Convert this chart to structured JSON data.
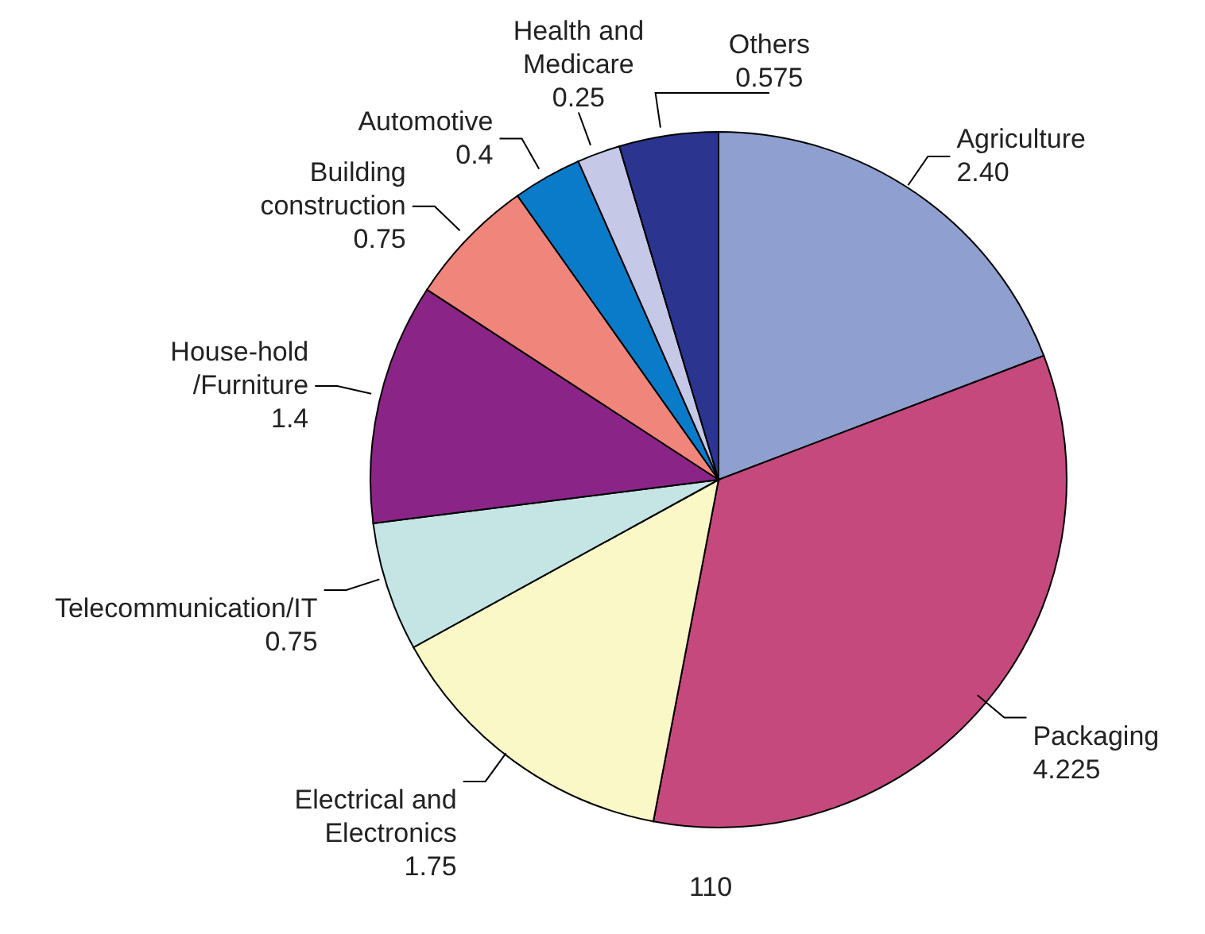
{
  "chart_data": {
    "type": "pie",
    "categories": [
      "Agriculture",
      "Packaging",
      "Electrical and\nElectronics",
      "Telecommunication/IT",
      "House-hold\n/Furniture",
      "Building\nconstruction",
      "Automotive",
      "Health and\nMedicare",
      "Others"
    ],
    "values": [
      2.4,
      4.225,
      1.75,
      0.75,
      1.4,
      0.75,
      0.4,
      0.25,
      0.575
    ],
    "value_labels": [
      "2.40",
      "4.225",
      "1.75",
      "0.75",
      "1.4",
      "0.75",
      "0.4",
      "0.25",
      "0.575"
    ],
    "colors": [
      "#8f9fcf",
      "#c5497d",
      "#fbf8c8",
      "#c5e5e5",
      "#8b2487",
      "#f0857c",
      "#0a7bc8",
      "#c5c8e6",
      "#2b3590"
    ],
    "annotations": [
      "110"
    ]
  }
}
